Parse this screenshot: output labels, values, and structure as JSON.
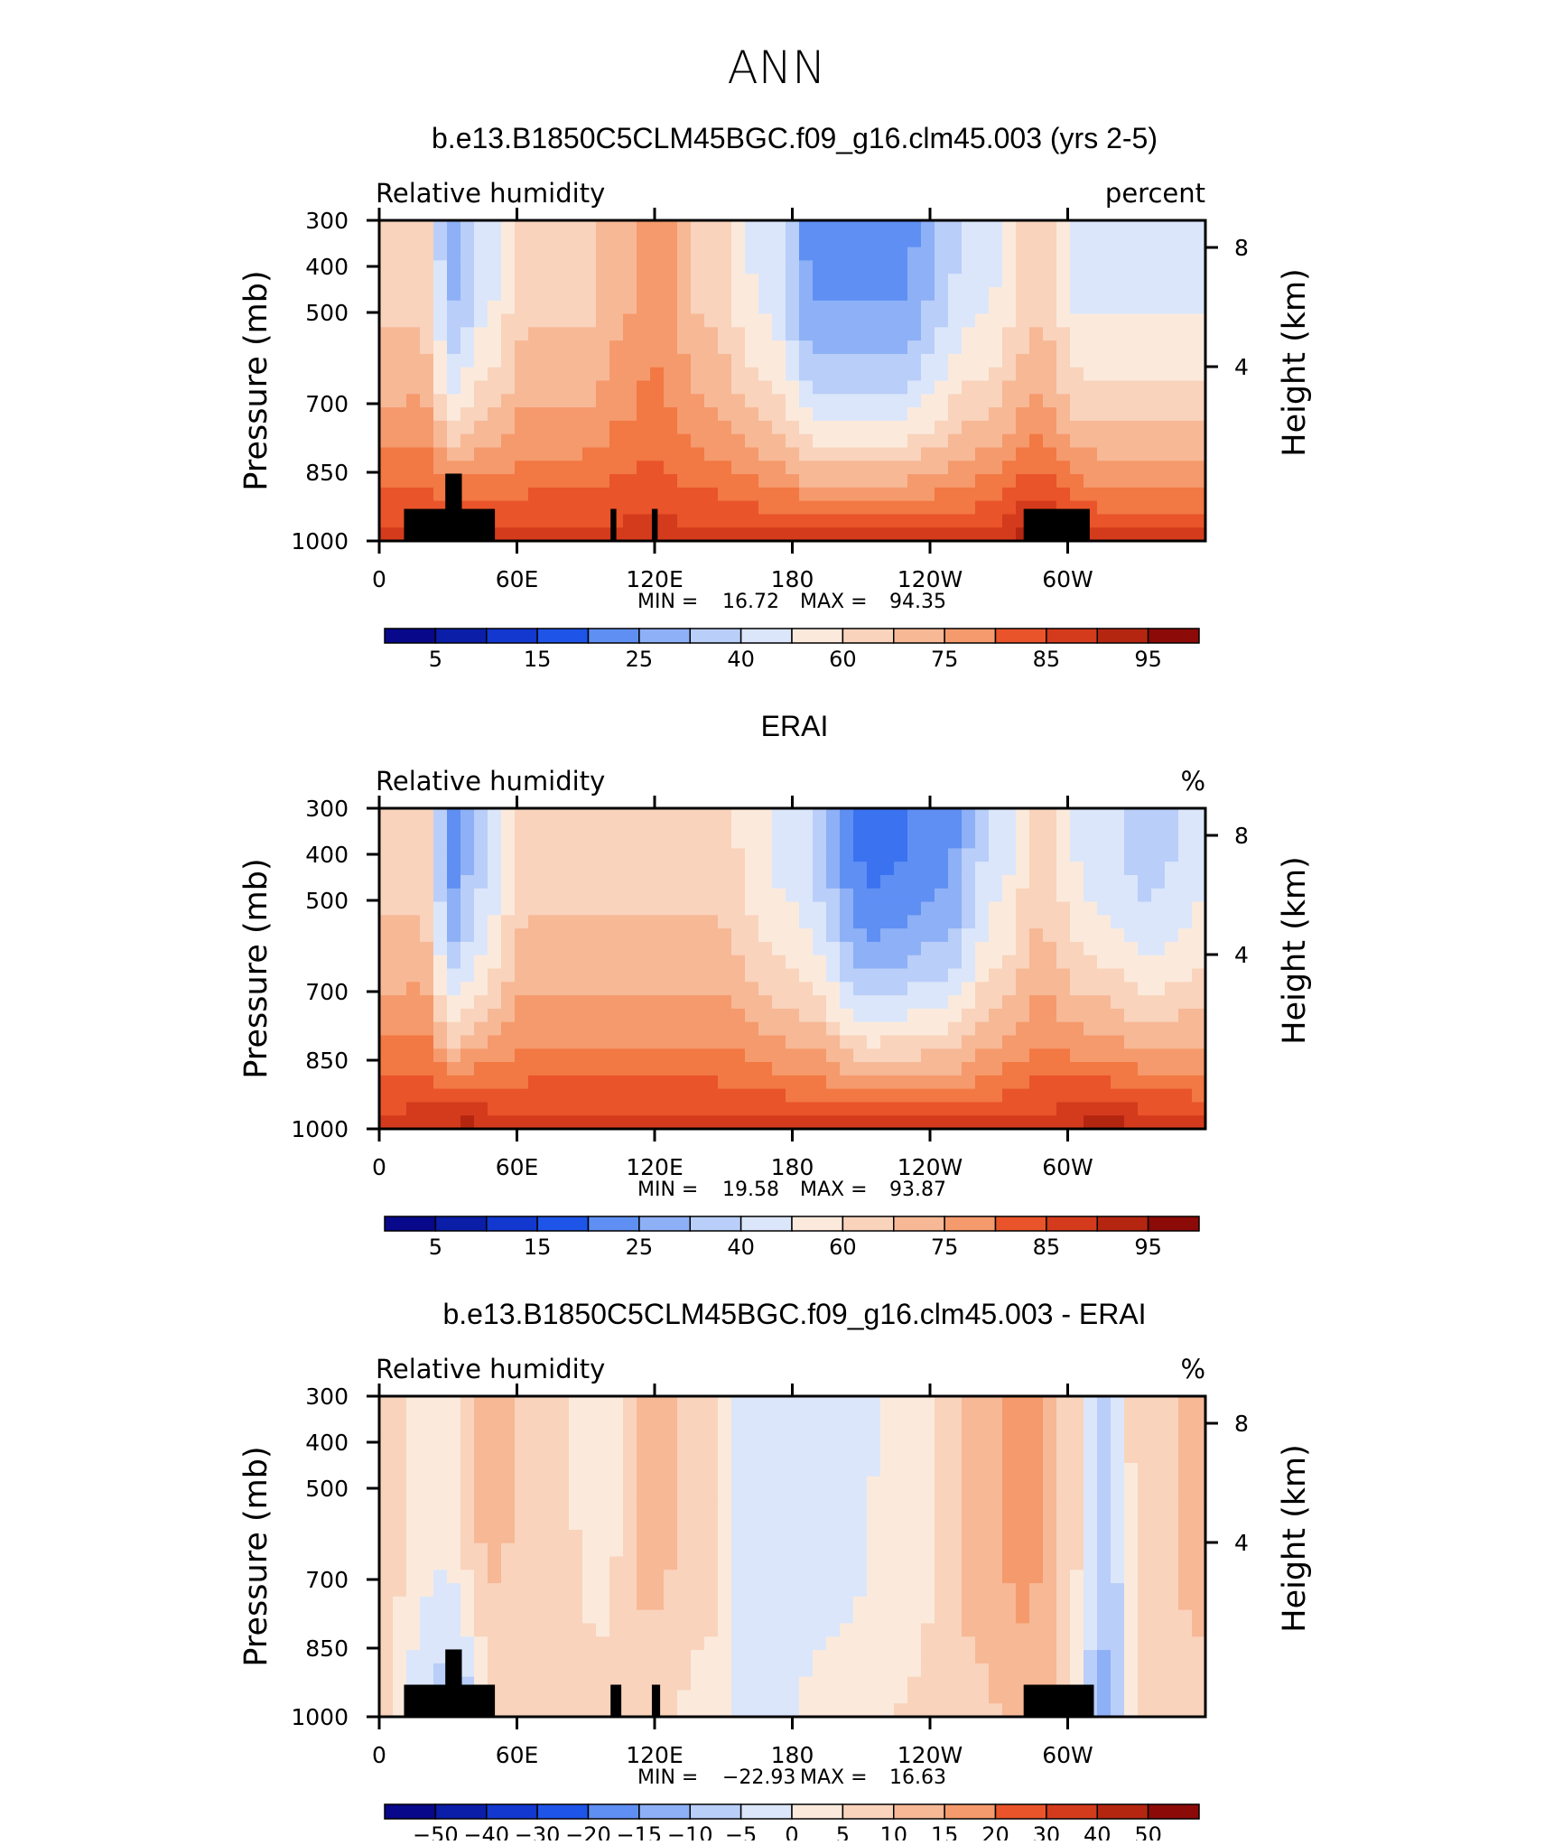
{
  "page": {
    "title": "ANN"
  },
  "colors": {
    "rh_scale": [
      "#08088a",
      "#0b1ea8",
      "#1238d0",
      "#1e55e8",
      "#3b72f0",
      "#5f8ff3",
      "#8eb0f6",
      "#b9cef8",
      "#dbe6fb",
      "#fbeadc",
      "#f9d3bc",
      "#f7b896",
      "#f59a6c",
      "#f27844",
      "#e9542a",
      "#d43b1c",
      "#b52611",
      "#8c0b08"
    ],
    "diff_scale": [
      "#08088a",
      "#0b1ea8",
      "#1238d0",
      "#1e55e8",
      "#3b72f0",
      "#5f8ff3",
      "#8eb0f6",
      "#b9cef8",
      "#dbe6fb",
      "#fbeadc",
      "#f9d3bc",
      "#f7b896",
      "#f59a6c",
      "#f27844",
      "#e9542a",
      "#d43b1c",
      "#b52611",
      "#8c0b08"
    ]
  },
  "chart_data": [
    {
      "type": "heatmap",
      "title": "b.e13.B1850C5CLM45BGC.f09_g16.clm45.003 (yrs 2-5)",
      "variable": "Relative humidity",
      "units": "percent",
      "ylabel": "Pressure (mb)",
      "ylabel_right": "Height (km)",
      "x_ticks": [
        "0",
        "60E",
        "120E",
        "180",
        "120W",
        "60W"
      ],
      "y_ticks": [
        "300",
        "400",
        "500",
        "700",
        "850",
        "1000"
      ],
      "right_ticks": [
        "8",
        "4"
      ],
      "stats": {
        "min_label": "MIN =",
        "min": "16.72",
        "max_label": "MAX =",
        "max": "94.35"
      },
      "colorbar_labels": [
        "5",
        "15",
        "25",
        "40",
        "60",
        "75",
        "85",
        "95"
      ],
      "scale": "rh"
    },
    {
      "type": "heatmap",
      "title": "ERAI",
      "variable": "Relative humidity",
      "units": "%",
      "ylabel": "Pressure (mb)",
      "ylabel_right": "Height (km)",
      "x_ticks": [
        "0",
        "60E",
        "120E",
        "180",
        "120W",
        "60W"
      ],
      "y_ticks": [
        "300",
        "400",
        "500",
        "700",
        "850",
        "1000"
      ],
      "right_ticks": [
        "8",
        "4"
      ],
      "stats": {
        "min_label": "MIN =",
        "min": "19.58",
        "max_label": "MAX =",
        "max": "93.87"
      },
      "colorbar_labels": [
        "5",
        "15",
        "25",
        "40",
        "60",
        "75",
        "85",
        "95"
      ],
      "scale": "rh"
    },
    {
      "type": "heatmap",
      "title": "b.e13.B1850C5CLM45BGC.f09_g16.clm45.003 - ERAI",
      "variable": "Relative humidity",
      "units": "%",
      "ylabel": "Pressure (mb)",
      "ylabel_right": "Height (km)",
      "x_ticks": [
        "0",
        "60E",
        "120E",
        "180",
        "120W",
        "60W"
      ],
      "y_ticks": [
        "300",
        "400",
        "500",
        "700",
        "850",
        "1000"
      ],
      "right_ticks": [
        "8",
        "4"
      ],
      "stats": {
        "min_label": "MIN =",
        "min": "−22.93",
        "max_label": "MAX =",
        "max": "16.63"
      },
      "colorbar_labels": [
        "−50",
        "−40",
        "−30",
        "−20",
        "−15",
        "−10",
        "−5",
        "0",
        "5",
        "10",
        "15",
        "20",
        "30",
        "40",
        "50"
      ],
      "scale": "diff"
    }
  ]
}
